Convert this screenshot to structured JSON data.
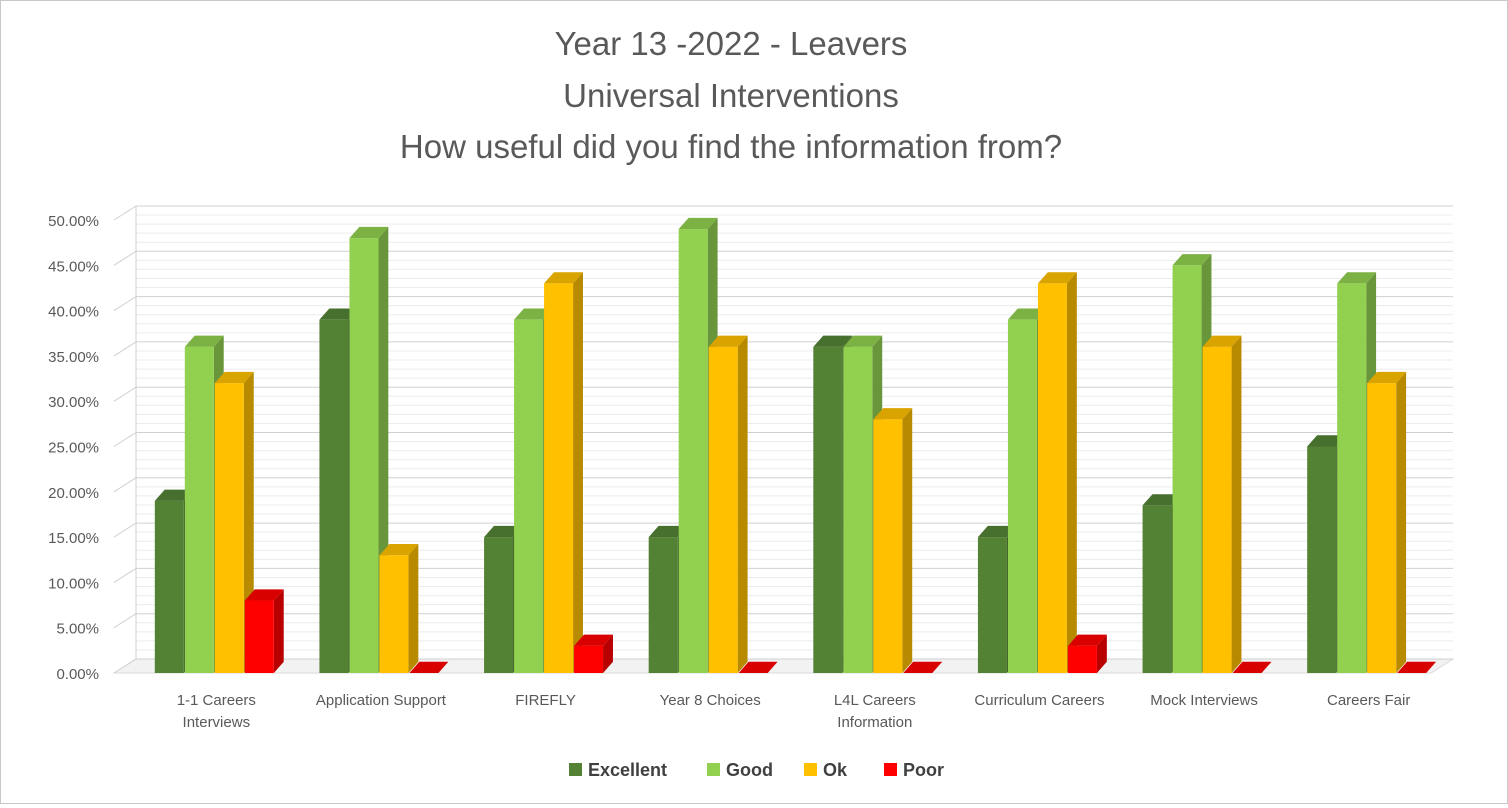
{
  "chart_data": {
    "type": "bar",
    "title": [
      "Year 13 -2022 - Leavers",
      "Universal Interventions",
      "How useful did you find the information from?"
    ],
    "xlabel": "",
    "ylabel": "",
    "categories": [
      [
        "1-1 Careers",
        "Interviews"
      ],
      [
        "Application Support"
      ],
      [
        "FIREFLY"
      ],
      [
        "Year 8 Choices"
      ],
      [
        "L4L Careers",
        "Information"
      ],
      [
        "Curriculum Careers"
      ],
      [
        "Mock Interviews"
      ],
      [
        "Careers Fair"
      ]
    ],
    "series": [
      {
        "name": "Excellent",
        "values": [
          19,
          39,
          15,
          15,
          36,
          15,
          18.5,
          25
        ],
        "color": "#548235"
      },
      {
        "name": "Good",
        "values": [
          36,
          48,
          39,
          49,
          36,
          39,
          45,
          43
        ],
        "color": "#92d050"
      },
      {
        "name": "Ok",
        "values": [
          32,
          13,
          43,
          36,
          28,
          43,
          36,
          32
        ],
        "color": "#ffc000"
      },
      {
        "name": "Poor",
        "values": [
          8,
          0,
          3,
          0,
          0,
          3,
          0,
          0
        ],
        "color": "#ff0000"
      }
    ],
    "yticks": [
      "0.00%",
      "5.00%",
      "10.00%",
      "15.00%",
      "20.00%",
      "25.00%",
      "30.00%",
      "35.00%",
      "40.00%",
      "45.00%",
      "50.00%"
    ],
    "ylim": [
      0,
      50
    ],
    "grid": true,
    "legend": "bottom",
    "style": "3d-column"
  }
}
